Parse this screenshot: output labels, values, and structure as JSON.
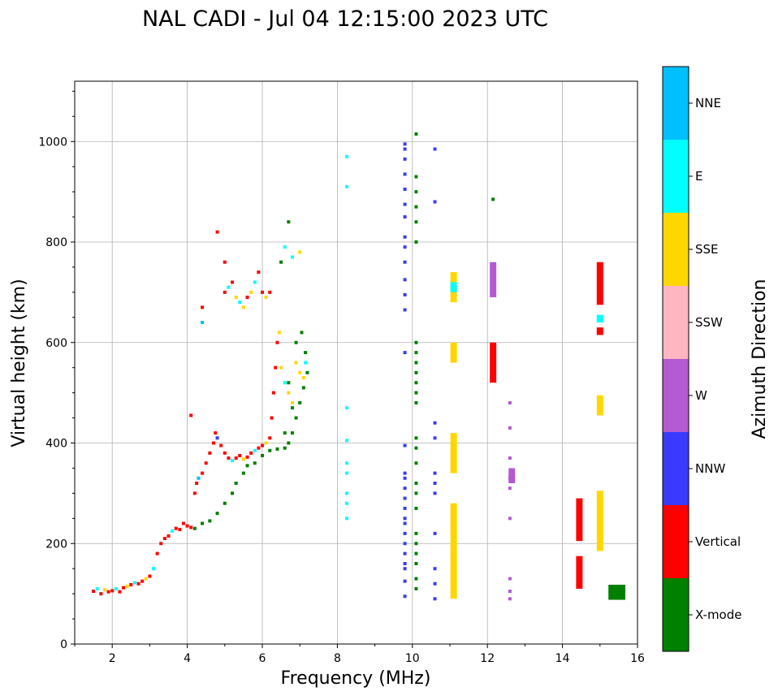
{
  "chart_data": {
    "type": "scatter",
    "title": "NAL CADI - Jul 04 12:15:00 2023 UTC",
    "xlabel": "Frequency (MHz)",
    "ylabel": "Virtual height (km)",
    "xlim": [
      1,
      16
    ],
    "ylim": [
      0,
      1120
    ],
    "xticks": [
      2,
      4,
      6,
      8,
      10,
      12,
      14,
      16
    ],
    "yticks": [
      0,
      200,
      400,
      600,
      800,
      1000
    ],
    "grid": true,
    "colorbar": {
      "label": "Azimuth Direction",
      "categories": [
        {
          "name": "X-mode",
          "color": "#008000"
        },
        {
          "name": "Vertical",
          "color": "#ff0000"
        },
        {
          "name": "NNW",
          "color": "#3a3aff"
        },
        {
          "name": "W",
          "color": "#b45ad2"
        },
        {
          "name": "SSW",
          "color": "#ffb6c1"
        },
        {
          "name": "SSE",
          "color": "#ffd700"
        },
        {
          "name": "E",
          "color": "#00ffff"
        },
        {
          "name": "NNE",
          "color": "#00bfff"
        }
      ]
    },
    "trace_points": [
      [
        1.5,
        105,
        "Vertical"
      ],
      [
        1.6,
        110,
        "E"
      ],
      [
        1.7,
        100,
        "Vertical"
      ],
      [
        1.8,
        108,
        "SSE"
      ],
      [
        1.9,
        104,
        "Vertical"
      ],
      [
        2.0,
        106,
        "Vertical"
      ],
      [
        2.1,
        110,
        "E"
      ],
      [
        2.2,
        104,
        "Vertical"
      ],
      [
        2.3,
        112,
        "Vertical"
      ],
      [
        2.4,
        115,
        "SSE"
      ],
      [
        2.5,
        118,
        "Vertical"
      ],
      [
        2.6,
        122,
        "E"
      ],
      [
        2.7,
        120,
        "Vertical"
      ],
      [
        2.8,
        125,
        "Vertical"
      ],
      [
        2.9,
        130,
        "SSE"
      ],
      [
        3.0,
        135,
        "Vertical"
      ],
      [
        3.1,
        150,
        "E"
      ],
      [
        3.2,
        180,
        "Vertical"
      ],
      [
        3.3,
        200,
        "Vertical"
      ],
      [
        3.4,
        210,
        "Vertical"
      ],
      [
        3.5,
        215,
        "Vertical"
      ],
      [
        3.6,
        225,
        "E"
      ],
      [
        3.7,
        230,
        "Vertical"
      ],
      [
        3.8,
        228,
        "Vertical"
      ],
      [
        3.9,
        240,
        "Vertical"
      ],
      [
        4.0,
        235,
        "Vertical"
      ],
      [
        4.1,
        232,
        "Vertical"
      ],
      [
        4.2,
        300,
        "Vertical"
      ],
      [
        4.25,
        320,
        "Vertical"
      ],
      [
        4.3,
        330,
        "NNE"
      ],
      [
        4.4,
        340,
        "Vertical"
      ],
      [
        4.5,
        360,
        "Vertical"
      ],
      [
        4.6,
        380,
        "Vertical"
      ],
      [
        4.7,
        400,
        "Vertical"
      ],
      [
        4.75,
        420,
        "Vertical"
      ],
      [
        4.8,
        410,
        "NNW"
      ],
      [
        4.9,
        395,
        "Vertical"
      ],
      [
        5.0,
        380,
        "Vertical"
      ],
      [
        5.1,
        370,
        "Vertical"
      ],
      [
        5.2,
        365,
        "E"
      ],
      [
        5.3,
        370,
        "Vertical"
      ],
      [
        5.4,
        375,
        "Vertical"
      ],
      [
        5.5,
        368,
        "SSE"
      ],
      [
        5.6,
        372,
        "Vertical"
      ],
      [
        5.7,
        380,
        "Vertical"
      ],
      [
        5.8,
        385,
        "E"
      ],
      [
        5.9,
        390,
        "Vertical"
      ],
      [
        6.0,
        395,
        "Vertical"
      ],
      [
        6.1,
        400,
        "SSE"
      ],
      [
        6.2,
        410,
        "Vertical"
      ],
      [
        6.25,
        450,
        "Vertical"
      ],
      [
        6.3,
        500,
        "Vertical"
      ],
      [
        6.35,
        550,
        "Vertical"
      ],
      [
        6.4,
        600,
        "Vertical"
      ],
      [
        6.45,
        620,
        "SSE"
      ],
      [
        6.5,
        550,
        "SSE"
      ],
      [
        6.6,
        520,
        "E"
      ],
      [
        6.7,
        500,
        "SSE"
      ],
      [
        6.8,
        480,
        "SSE"
      ],
      [
        6.9,
        560,
        "SSE"
      ],
      [
        7.0,
        540,
        "SSE"
      ],
      [
        7.1,
        530,
        "SSE"
      ],
      [
        7.15,
        560,
        "E"
      ],
      [
        5.0,
        700,
        "Vertical"
      ],
      [
        5.1,
        710,
        "E"
      ],
      [
        5.2,
        720,
        "Vertical"
      ],
      [
        5.3,
        690,
        "SSE"
      ],
      [
        5.4,
        680,
        "E"
      ],
      [
        5.5,
        670,
        "SSE"
      ],
      [
        5.6,
        690,
        "Vertical"
      ],
      [
        5.7,
        700,
        "SSE"
      ],
      [
        5.8,
        720,
        "E"
      ],
      [
        5.9,
        740,
        "Vertical"
      ],
      [
        6.0,
        700,
        "Vertical"
      ],
      [
        6.1,
        690,
        "SSE"
      ],
      [
        6.2,
        700,
        "Vertical"
      ],
      [
        5.0,
        760,
        "Vertical"
      ],
      [
        4.8,
        820,
        "Vertical"
      ],
      [
        6.6,
        790,
        "E"
      ],
      [
        6.8,
        770,
        "E"
      ],
      [
        7.0,
        780,
        "SSE"
      ],
      [
        4.1,
        455,
        "Vertical"
      ],
      [
        4.4,
        670,
        "Vertical"
      ],
      [
        4.4,
        640,
        "NNE"
      ]
    ],
    "xmode_points": [
      [
        4.2,
        230,
        "X-mode"
      ],
      [
        4.4,
        240,
        "X-mode"
      ],
      [
        4.6,
        245,
        "X-mode"
      ],
      [
        4.8,
        260,
        "X-mode"
      ],
      [
        5.0,
        280,
        "X-mode"
      ],
      [
        5.2,
        300,
        "X-mode"
      ],
      [
        5.3,
        320,
        "X-mode"
      ],
      [
        5.5,
        340,
        "X-mode"
      ],
      [
        5.6,
        355,
        "X-mode"
      ],
      [
        5.8,
        360,
        "X-mode"
      ],
      [
        6.0,
        375,
        "X-mode"
      ],
      [
        6.2,
        385,
        "X-mode"
      ],
      [
        6.4,
        388,
        "X-mode"
      ],
      [
        6.6,
        390,
        "X-mode"
      ],
      [
        6.7,
        400,
        "X-mode"
      ],
      [
        6.8,
        420,
        "X-mode"
      ],
      [
        6.9,
        450,
        "X-mode"
      ],
      [
        7.0,
        480,
        "X-mode"
      ],
      [
        7.1,
        510,
        "X-mode"
      ],
      [
        7.2,
        540,
        "X-mode"
      ],
      [
        7.15,
        580,
        "X-mode"
      ],
      [
        7.05,
        620,
        "X-mode"
      ],
      [
        6.9,
        600,
        "X-mode"
      ],
      [
        6.8,
        470,
        "X-mode"
      ],
      [
        6.7,
        520,
        "X-mode"
      ],
      [
        6.6,
        420,
        "X-mode"
      ],
      [
        6.5,
        760,
        "X-mode"
      ],
      [
        6.7,
        840,
        "X-mode"
      ],
      [
        12.15,
        885,
        "X-mode"
      ]
    ],
    "scatter_columns": [
      {
        "x": 9.8,
        "heights": [
          95,
          125,
          150,
          160,
          180,
          200,
          220,
          240,
          250,
          270,
          290,
          310,
          330,
          340,
          395,
          580,
          665,
          695,
          725,
          760,
          790,
          810,
          850,
          875,
          905,
          935,
          965,
          985,
          995
        ],
        "mode": "NNW"
      },
      {
        "x": 10.1,
        "heights": [
          110,
          130,
          160,
          180,
          200,
          220,
          270,
          300,
          320,
          360,
          390,
          410,
          480,
          500,
          520,
          540,
          560,
          580,
          600,
          800,
          840,
          870,
          900,
          930,
          1015
        ],
        "mode": "X-mode"
      },
      {
        "x": 10.6,
        "heights": [
          90,
          120,
          150,
          220,
          300,
          320,
          340,
          410,
          440,
          880,
          985
        ],
        "mode": "NNW"
      },
      {
        "x": 8.25,
        "heights": [
          250,
          280,
          300,
          340,
          360,
          405,
          470,
          910,
          970
        ],
        "mode": "E"
      },
      {
        "x": 12.6,
        "heights": [
          90,
          105,
          130,
          250,
          310,
          330,
          370,
          430,
          480
        ],
        "mode": "W"
      }
    ],
    "bars": [
      {
        "x": 11.1,
        "y0": 90,
        "y1": 280,
        "mode": "SSE"
      },
      {
        "x": 11.1,
        "y0": 340,
        "y1": 420,
        "mode": "SSE"
      },
      {
        "x": 11.1,
        "y0": 560,
        "y1": 600,
        "mode": "SSE"
      },
      {
        "x": 11.1,
        "y0": 680,
        "y1": 740,
        "mode": "SSE"
      },
      {
        "x": 11.1,
        "y0": 700,
        "y1": 720,
        "mode": "E"
      },
      {
        "x": 12.15,
        "y0": 520,
        "y1": 600,
        "mode": "Vertical"
      },
      {
        "x": 12.15,
        "y0": 690,
        "y1": 760,
        "mode": "W"
      },
      {
        "x": 12.65,
        "y0": 320,
        "y1": 350,
        "mode": "W"
      },
      {
        "x": 14.45,
        "y0": 110,
        "y1": 175,
        "mode": "Vertical"
      },
      {
        "x": 14.45,
        "y0": 205,
        "y1": 290,
        "mode": "Vertical"
      },
      {
        "x": 15.0,
        "y0": 185,
        "y1": 305,
        "mode": "SSE"
      },
      {
        "x": 15.0,
        "y0": 455,
        "y1": 495,
        "mode": "SSE"
      },
      {
        "x": 15.0,
        "y0": 615,
        "y1": 630,
        "mode": "Vertical"
      },
      {
        "x": 15.0,
        "y0": 640,
        "y1": 655,
        "mode": "E"
      },
      {
        "x": 15.0,
        "y0": 675,
        "y1": 760,
        "mode": "Vertical"
      },
      {
        "x": 15.45,
        "y0": 88,
        "y1": 118,
        "mode": "X-mode",
        "width": 0.45
      }
    ]
  }
}
